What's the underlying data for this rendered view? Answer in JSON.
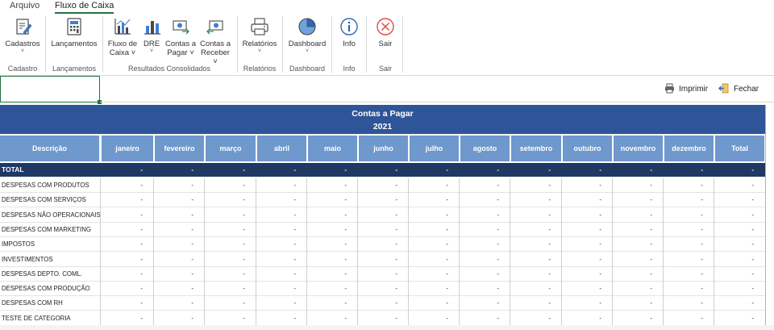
{
  "tabs": {
    "arquivo": "Arquivo",
    "fluxo": "Fluxo de Caixa"
  },
  "ribbon": {
    "cadastros": {
      "line1": "Cadastros",
      "chev": "˅",
      "icon": "edit-document-icon"
    },
    "lancamentos": {
      "line1": "Lançamentos",
      "icon": "calculator-icon"
    },
    "fluxo": {
      "line1": "Fluxo de",
      "line2": "Caixa ˅",
      "icon": "bar-chart-icon"
    },
    "dre": {
      "line1": "DRE",
      "line2": "˅",
      "icon": "bar-chart-blue-icon"
    },
    "contas_pagar": {
      "line1": "Contas a",
      "line2": "Pagar ˅",
      "icon": "money-out-icon"
    },
    "contas_receber": {
      "line1": "Contas a",
      "line2": "Receber ˅",
      "icon": "money-in-icon"
    },
    "relatorios": {
      "line1": "Relatórios",
      "chev": "˅",
      "icon": "printer-icon"
    },
    "dashboard": {
      "line1": "Dashboard",
      "chev": "˅",
      "icon": "pie-chart-icon"
    },
    "info": {
      "line1": "Info",
      "icon": "info-icon"
    },
    "sair": {
      "line1": "Sair",
      "icon": "close-circle-icon"
    },
    "groups": {
      "cadastro": "Cadastro",
      "lancamentos": "Lançamentos",
      "resultados": "Resultados Consolidados",
      "relatorios": "Relatórios",
      "dashboard": "Dashboard",
      "info": "Info",
      "sair": "Sair"
    }
  },
  "toolbar": {
    "print_label": "Imprimir",
    "close_label": "Fechar"
  },
  "report": {
    "title": "Contas a Pagar",
    "year": "2021",
    "columns": [
      "Descrição",
      "janeiro",
      "fevereiro",
      "março",
      "abril",
      "maio",
      "junho",
      "julho",
      "agosto",
      "setembro",
      "outubro",
      "novembro",
      "dezembro",
      "Total"
    ],
    "total_label": "TOTAL",
    "empty_value": "-",
    "rows": [
      "DESPESAS COM PRODUTOS",
      "DESPESAS COM SERVIÇOS",
      "DESPESAS NÃO OPERACIONAIS",
      "DESPESAS COM MARKETING",
      "IMPOSTOS",
      "INVESTIMENTOS",
      "DESPESAS DEPTO. COML.",
      "DESPESAS COM PRODUÇÃO",
      "DESPESAS COM RH",
      "TESTE DE CATEGORIA"
    ]
  },
  "colors": {
    "banner": "#2e5597",
    "header": "#6f98cc",
    "total_row": "#1f3864",
    "accent": "#217346"
  }
}
